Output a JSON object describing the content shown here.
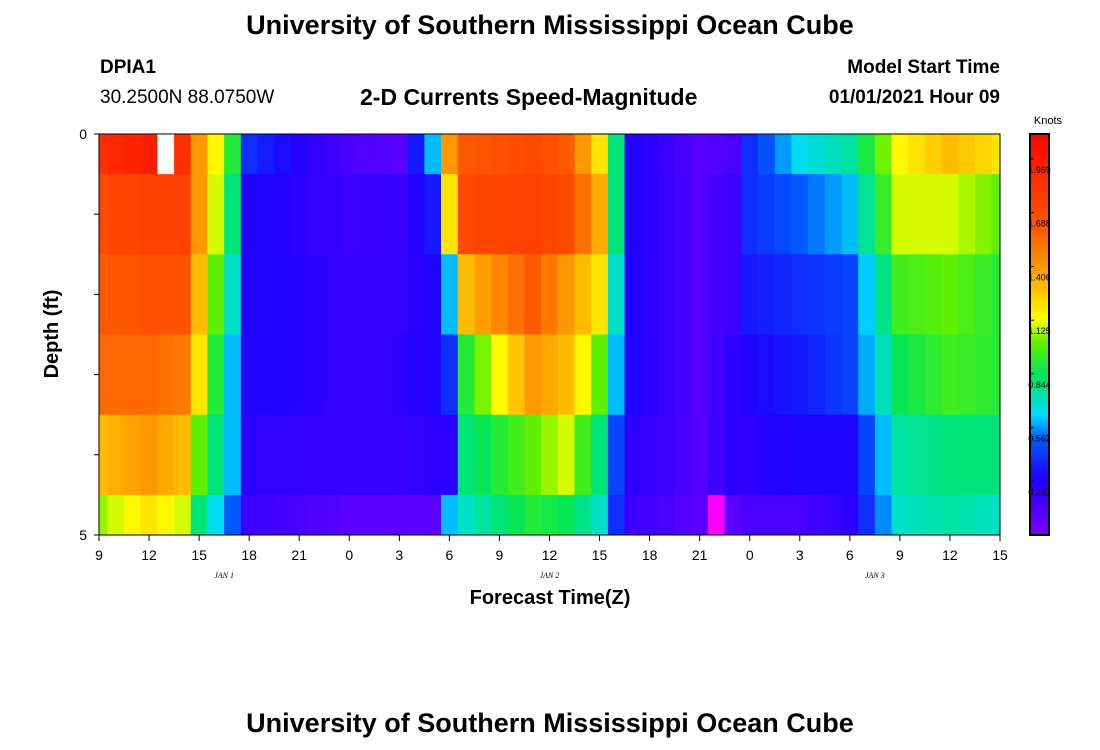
{
  "header": {
    "title": "University of Southern Mississippi Ocean Cube",
    "station": "DPIA1",
    "coordinates": "30.2500N 88.0750W",
    "subtitle": "2-D Currents Speed-Magnitude",
    "model_start_label": "Model Start Time",
    "model_start_value": "01/01/2021 Hour 09"
  },
  "footer": {
    "title": "University of Southern Mississippi Ocean Cube"
  },
  "chart_data": {
    "type": "heatmap",
    "title": "2-D Currents Speed-Magnitude",
    "xlabel": "Forecast Time(Z)",
    "ylabel": "Depth (ft)",
    "x_tick_labels": [
      "9",
      "12",
      "15",
      "18",
      "21",
      "0",
      "3",
      "6",
      "9",
      "12",
      "15",
      "18",
      "21",
      "0",
      "3",
      "6",
      "9",
      "12",
      "15"
    ],
    "x_hours": [
      0,
      3,
      6,
      9,
      12,
      15,
      18,
      21,
      24,
      27,
      30,
      33,
      36,
      39,
      42,
      45,
      48,
      51,
      54
    ],
    "date_labels": [
      {
        "label": "JAN 1",
        "hour": 7.5
      },
      {
        "label": "JAN 2",
        "hour": 27
      },
      {
        "label": "JAN 3",
        "hour": 46.5
      }
    ],
    "y_tick_labels": [
      "0",
      "5"
    ],
    "ylim": [
      0,
      5
    ],
    "depth_layers": [
      "0-0.5",
      "0.5-1.5",
      "1.5-2.5",
      "2.5-3.5",
      "3.5-4.5",
      "4.5-5"
    ],
    "colorbar": {
      "title": "Knots",
      "min": 0,
      "max": 2.1,
      "tick_labels": [
        "0.281",
        "0.562",
        "0.844",
        "1.125",
        "1.406",
        "1.688",
        "1.969"
      ],
      "tick_values": [
        0.281,
        0.562,
        0.844,
        1.125,
        1.406,
        1.688,
        1.969
      ]
    },
    "keyframes": [
      {
        "hour": 0,
        "speeds": [
          1.85,
          1.7,
          1.6,
          1.55,
          1.3,
          1.05
        ]
      },
      {
        "hour": 3,
        "speeds": [
          1.95,
          1.75,
          1.65,
          1.55,
          1.4,
          1.2
        ]
      },
      {
        "hour": 5,
        "speeds": [
          1.85,
          1.75,
          1.65,
          1.5,
          1.3,
          1.1
        ]
      },
      {
        "hour": 6,
        "speeds": [
          1.4,
          1.4,
          1.3,
          1.2,
          1.0,
          0.8
        ]
      },
      {
        "hour": 8,
        "speeds": [
          0.9,
          0.8,
          0.7,
          0.6,
          0.6,
          0.5
        ]
      },
      {
        "hour": 9,
        "speeds": [
          0.4,
          0.3,
          0.3,
          0.3,
          0.25,
          0.2
        ]
      },
      {
        "hour": 15,
        "speeds": [
          0.15,
          0.2,
          0.22,
          0.22,
          0.22,
          0.1
        ]
      },
      {
        "hour": 18,
        "speeds": [
          0.1,
          0.22,
          0.22,
          0.25,
          0.22,
          0.1
        ]
      },
      {
        "hour": 20,
        "speeds": [
          0.6,
          0.35,
          0.3,
          0.3,
          0.25,
          0.1
        ]
      },
      {
        "hour": 21,
        "speeds": [
          1.4,
          1.2,
          0.6,
          0.4,
          0.25,
          0.6
        ]
      },
      {
        "hour": 22,
        "speeds": [
          1.6,
          1.7,
          1.3,
          0.9,
          0.8,
          0.7
        ]
      },
      {
        "hour": 26,
        "speeds": [
          1.7,
          1.75,
          1.6,
          1.4,
          1.0,
          0.9
        ]
      },
      {
        "hour": 28,
        "speeds": [
          1.6,
          1.7,
          1.4,
          1.3,
          1.1,
          0.85
        ]
      },
      {
        "hour": 30,
        "speeds": [
          1.2,
          1.35,
          1.2,
          1.0,
          0.8,
          0.7
        ]
      },
      {
        "hour": 31,
        "speeds": [
          0.8,
          0.8,
          0.7,
          0.6,
          0.45,
          0.4
        ]
      },
      {
        "hour": 32,
        "speeds": [
          0.3,
          0.3,
          0.3,
          0.3,
          0.25,
          0.2
        ]
      },
      {
        "hour": 36,
        "speeds": [
          0.1,
          0.12,
          0.12,
          0.12,
          0.12,
          0.1
        ]
      },
      {
        "hour": 38,
        "speeds": [
          0.15,
          0.2,
          0.2,
          0.25,
          0.25,
          0.1
        ]
      },
      {
        "hour": 39,
        "speeds": [
          0.4,
          0.4,
          0.35,
          0.3,
          0.25,
          0.15
        ]
      },
      {
        "hour": 42,
        "speeds": [
          0.65,
          0.5,
          0.4,
          0.35,
          0.3,
          0.15
        ]
      },
      {
        "hour": 45,
        "speeds": [
          0.75,
          0.6,
          0.45,
          0.45,
          0.3,
          0.25
        ]
      },
      {
        "hour": 48,
        "speeds": [
          1.15,
          1.1,
          0.95,
          0.85,
          0.75,
          0.7
        ]
      },
      {
        "hour": 51,
        "speeds": [
          1.3,
          1.1,
          1.0,
          0.95,
          0.8,
          0.75
        ]
      },
      {
        "hour": 54,
        "speeds": [
          1.2,
          1.0,
          0.9,
          0.9,
          0.8,
          0.7
        ]
      }
    ],
    "masked_cells": [
      {
        "hour": 4,
        "layer": 0,
        "color": "#ffffff"
      },
      {
        "hour": 37,
        "layer": 5,
        "color": "#ff00ff"
      }
    ]
  }
}
